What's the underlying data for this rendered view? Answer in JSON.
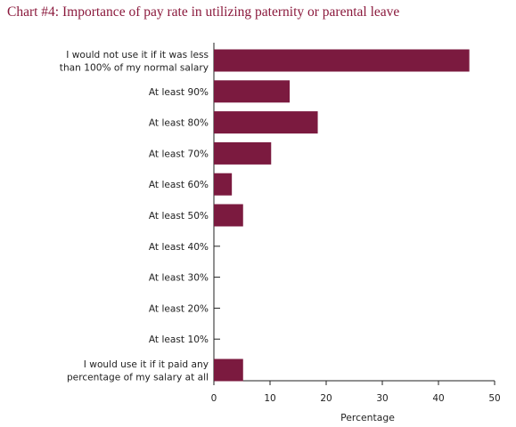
{
  "chart_data": {
    "type": "bar",
    "orientation": "horizontal",
    "title": "Chart #4: Importance of pay rate in utilizing paternity or parental leave",
    "xlabel": "Percentage",
    "ylabel": "",
    "xlim": [
      0,
      50
    ],
    "xticks": [
      0,
      10,
      20,
      30,
      40,
      50
    ],
    "grid": false,
    "legend": "none",
    "bar_color": "#7b1a3f",
    "title_color": "#8b1a3d",
    "categories": [
      [
        "I would not use it if it was less",
        "than 100% of my normal salary"
      ],
      [
        "At least 90%"
      ],
      [
        "At least 80%"
      ],
      [
        "At least 70%"
      ],
      [
        "At least 60%"
      ],
      [
        "At least 50%"
      ],
      [
        "At least 40%"
      ],
      [
        "At least 30%"
      ],
      [
        "At least 20%"
      ],
      [
        "At least 10%"
      ],
      [
        "I would use it if it paid any",
        "percentage of my salary at all"
      ]
    ],
    "values": [
      45.5,
      13.5,
      18.5,
      10.2,
      3.2,
      5.2,
      0,
      0,
      0,
      0,
      5.2
    ]
  }
}
